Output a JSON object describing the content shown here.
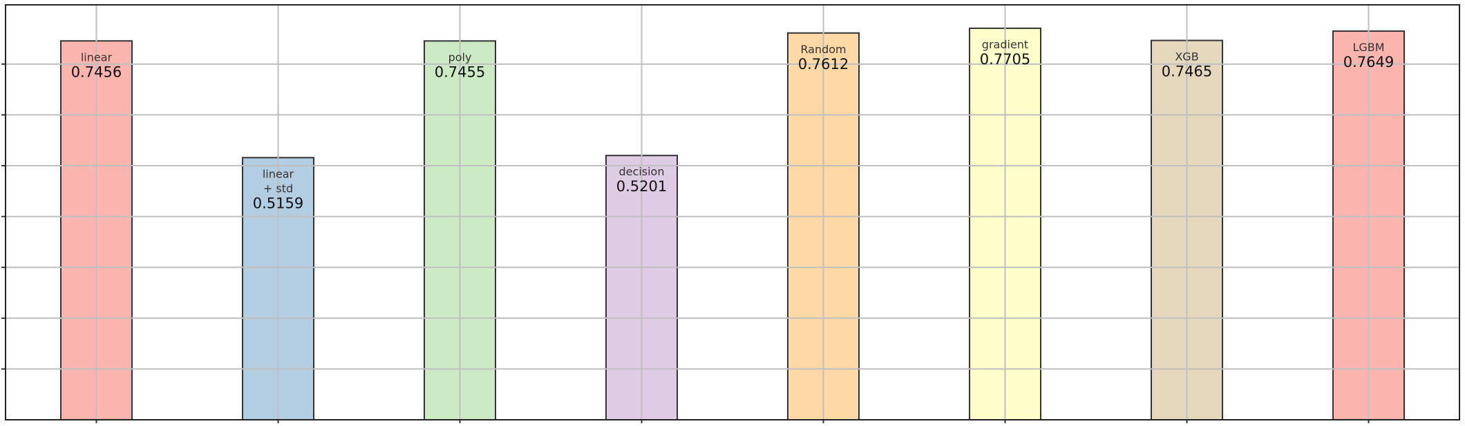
{
  "chart_data": {
    "type": "bar",
    "categories": [
      "linear",
      "linear\n+ std",
      "poly",
      "decision",
      "Random",
      "gradient",
      "XGB",
      "LGBM"
    ],
    "series": [
      {
        "values": [
          0.7456,
          0.5159,
          0.7455,
          0.5201,
          0.7612,
          0.7705,
          0.7465,
          0.7649
        ],
        "value_labels": [
          "0.7456",
          "0.5159",
          "0.7455",
          "0.5201",
          "0.7612",
          "0.7705",
          "0.7465",
          "0.7649"
        ]
      }
    ],
    "bar_colors": [
      "#fbb4ae",
      "#b3cde3",
      "#ccebc5",
      "#decbe4",
      "#fed9a6",
      "#ffffcc",
      "#e5d8bd",
      "#fbb4ae"
    ],
    "edge_color": "#333333",
    "grid": true,
    "grid_color": "#bfbfbf",
    "ylim": [
      0,
      0.8166
    ],
    "yticks": [
      0.1,
      0.2,
      0.3,
      0.4,
      0.5,
      0.6,
      0.7
    ],
    "title": "",
    "xlabel": "",
    "ylabel": ""
  }
}
